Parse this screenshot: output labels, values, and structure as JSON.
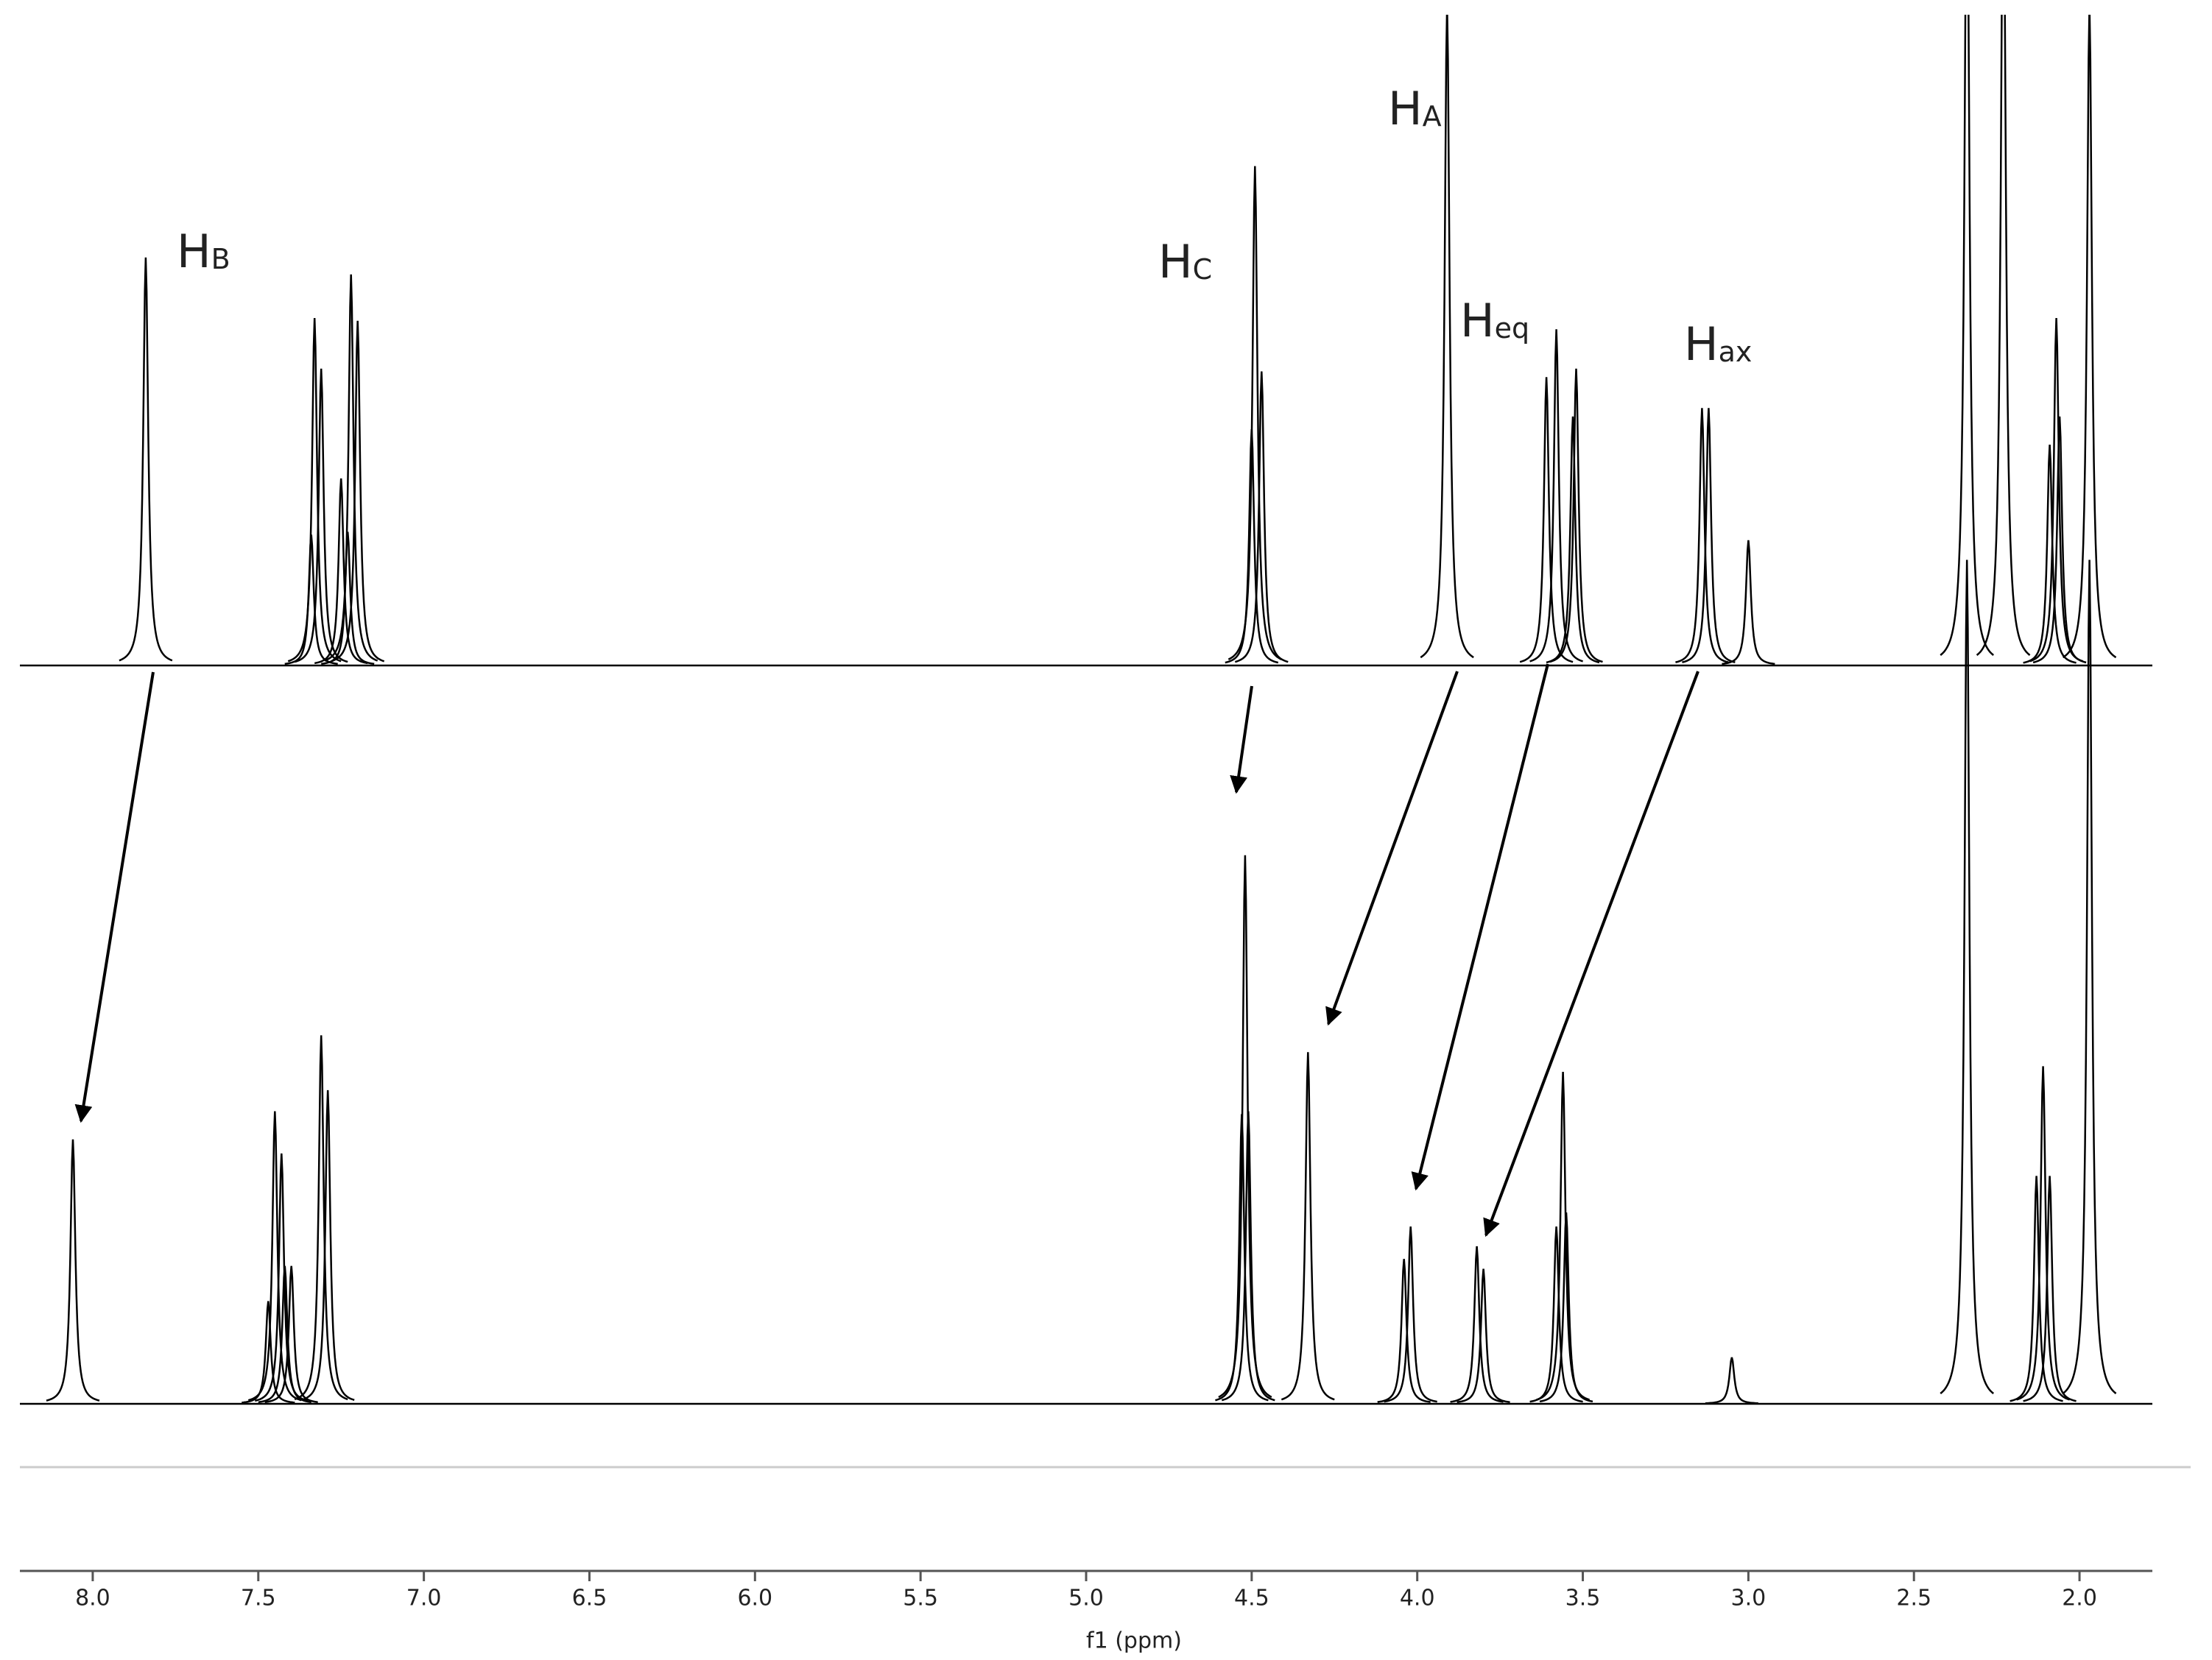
{
  "chart_data": {
    "type": "line",
    "xlabel": "f1 (ppm)",
    "xlim": [
      8.22,
      1.78
    ],
    "ylim": [
      0,
      460
    ],
    "xticks": [
      {
        "value": 8,
        "label": "8.0"
      },
      7.5,
      {
        "value": 7,
        "label": "7.0"
      },
      6.5,
      {
        "value": 6,
        "label": "6.0"
      },
      5.5,
      {
        "value": 5,
        "label": "5.0"
      },
      4.5,
      {
        "value": 4,
        "label": "4.0"
      },
      3.5,
      {
        "value": 3,
        "label": "3.0"
      },
      2.5,
      {
        "value": 2,
        "label": "2.0"
      }
    ],
    "series": [
      {
        "color": "#000000",
        "x": [
          7.84,
          7.34,
          7.33,
          7.31,
          7.25,
          7.23,
          7.22,
          7.2,
          4.5,
          4.49,
          4.47,
          3.91,
          3.61,
          3.58,
          3.53,
          3.52,
          3.14,
          3.12,
          3.0,
          2.34,
          2.23,
          2.09,
          2.07,
          2.06,
          1.97
        ],
        "values": [
          290,
          93,
          247,
          211,
          133,
          95,
          278,
          245,
          168,
          355,
          209,
          470,
          205,
          239,
          177,
          211,
          183,
          183,
          89,
          600,
          600,
          157,
          247,
          177,
          470
        ]
      },
      {
        "color": "#000000",
        "x": [
          8.06,
          7.47,
          7.45,
          7.43,
          7.42,
          7.4,
          7.31,
          7.29,
          4.53,
          4.52,
          4.51,
          4.33,
          4.04,
          4.02,
          3.82,
          3.8,
          3.58,
          3.56,
          3.55,
          3.05,
          2.34,
          2.13,
          2.11,
          2.09,
          1.97
        ],
        "values": [
          188,
          73,
          208,
          178,
          98,
          98,
          262,
          223,
          206,
          390,
          208,
          250,
          103,
          126,
          112,
          96,
          126,
          236,
          136,
          33,
          600,
          162,
          240,
          162,
          600
        ]
      }
    ],
    "annotations": [
      {
        "text": "H",
        "sub": "B"
      },
      {
        "text": "H",
        "sub": "C"
      },
      {
        "text": "H",
        "sub": "A"
      },
      {
        "text": "H",
        "sub": "eq"
      },
      {
        "text": "H",
        "sub": "ax"
      }
    ]
  }
}
